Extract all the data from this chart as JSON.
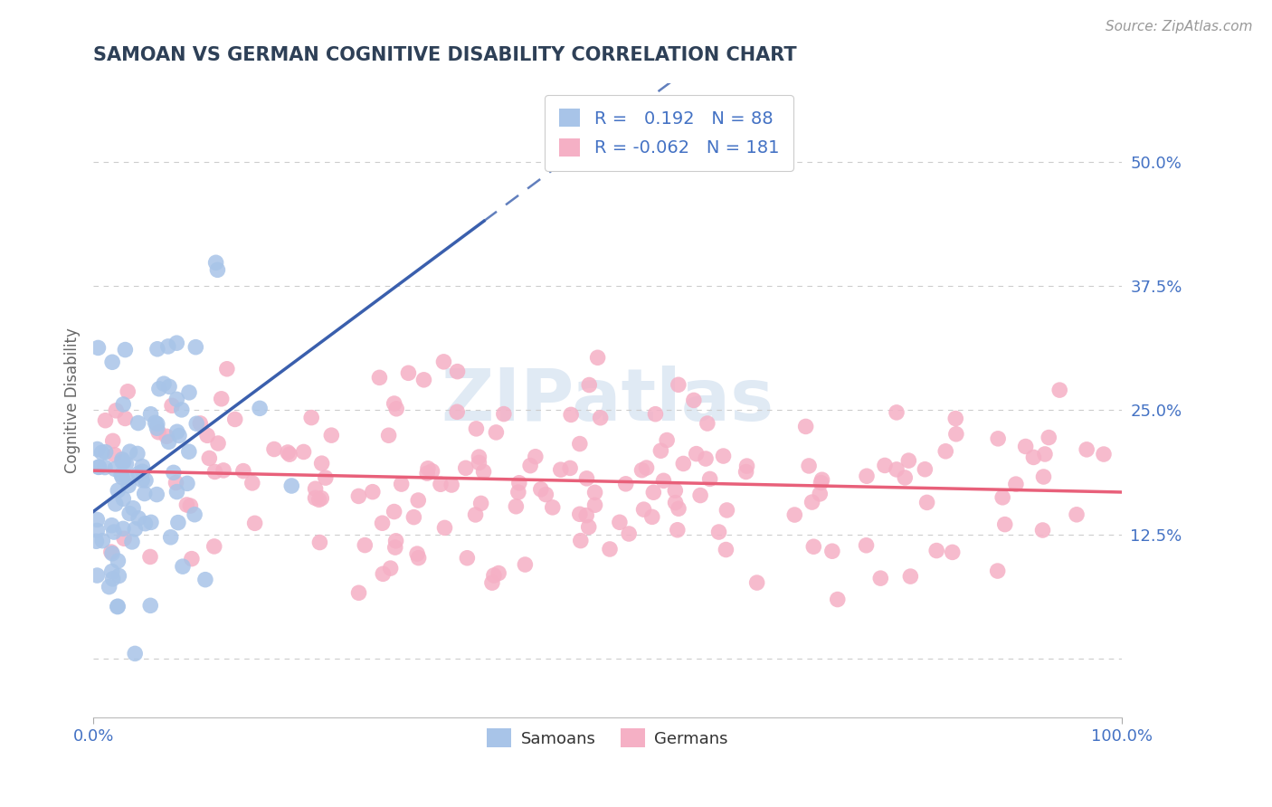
{
  "title": "SAMOAN VS GERMAN COGNITIVE DISABILITY CORRELATION CHART",
  "source": "Source: ZipAtlas.com",
  "ylabel": "Cognitive Disability",
  "xlim": [
    0.0,
    1.0
  ],
  "ylim": [
    -0.06,
    0.58
  ],
  "yticks": [
    0.0,
    0.125,
    0.25,
    0.375,
    0.5
  ],
  "ytick_labels": [
    "",
    "12.5%",
    "25.0%",
    "37.5%",
    "50.0%"
  ],
  "xtick_labels": [
    "0.0%",
    "100.0%"
  ],
  "samoan_R": 0.192,
  "samoan_N": 88,
  "german_R": -0.062,
  "german_N": 181,
  "samoan_color": "#a8c4e8",
  "german_color": "#f5b0c5",
  "samoan_line_color": "#3a5fad",
  "german_line_color": "#e8607a",
  "background_color": "#ffffff",
  "grid_color": "#cccccc",
  "title_color": "#2e4057",
  "axis_label_color": "#4472c4",
  "legend_R_color": "#4472c4",
  "watermark_color": "#ccdcee",
  "samoan_seed": 7,
  "german_seed": 55
}
